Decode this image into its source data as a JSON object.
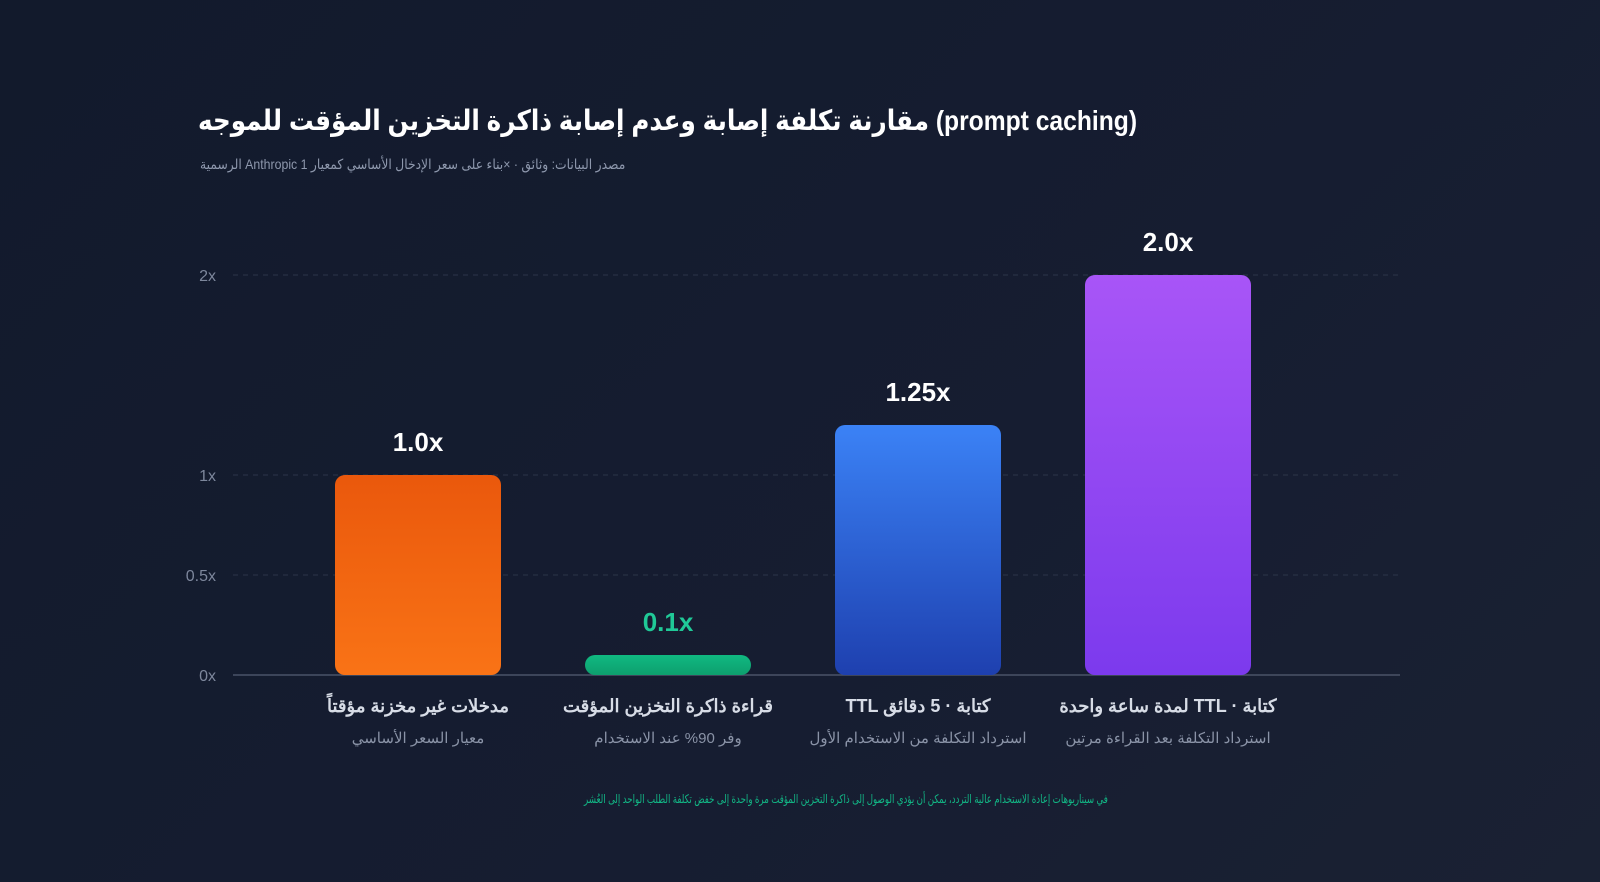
{
  "chart_data": {
    "type": "bar",
    "title": "مقارنة تكلفة إصابة وعدم إصابة ذاكرة التخزين المؤقت للموجه (prompt caching)",
    "subtitle": "الرسمية Anthropic مصدر البيانات: وثائق · ×بناء على سعر الإدخال الأساسي كمعيار 1",
    "categories": [
      "مدخلات غير مخزنة مؤقتاً",
      "قراءة ذاكرة التخزين المؤقت",
      "TTL كتابة · 5 دقائق",
      "لمدة ساعة واحدة TTL · كتابة"
    ],
    "sublabels": [
      "معيار السعر الأساسي",
      "وفر 90% عند الاستخدام",
      "استرداد التكلفة من الاستخدام الأول",
      "استرداد التكلفة بعد القراءة مرتين"
    ],
    "values": [
      1.0,
      0.1,
      1.25,
      2.0
    ],
    "value_labels": [
      "1.0x",
      "0.1x",
      "1.25x",
      "2.0x"
    ],
    "value_label_colors": [
      "#ffffff",
      "#20c997",
      "#ffffff",
      "#ffffff"
    ],
    "colors": [
      [
        "#ea580c",
        "#f97316"
      ],
      [
        "#10b981",
        "#0e9f6e"
      ],
      [
        "#3b82f6",
        "#1e40af"
      ],
      [
        "#a855f7",
        "#7c3aed"
      ]
    ],
    "yticks": [
      0,
      0.5,
      1,
      2
    ],
    "ytick_labels": [
      "0x",
      "0.5x",
      "1x",
      "2x"
    ],
    "ylim": [
      0,
      2
    ],
    "grid": true,
    "footnote": "في سيناريوهات إعادة الاستخدام عالية التردد، يمكن أن يؤدي الوصول إلى ذاكرة التخزين المؤقت مرة واحدة إلى خفض تكلفة الطلب الواحد إلى العُشر"
  }
}
